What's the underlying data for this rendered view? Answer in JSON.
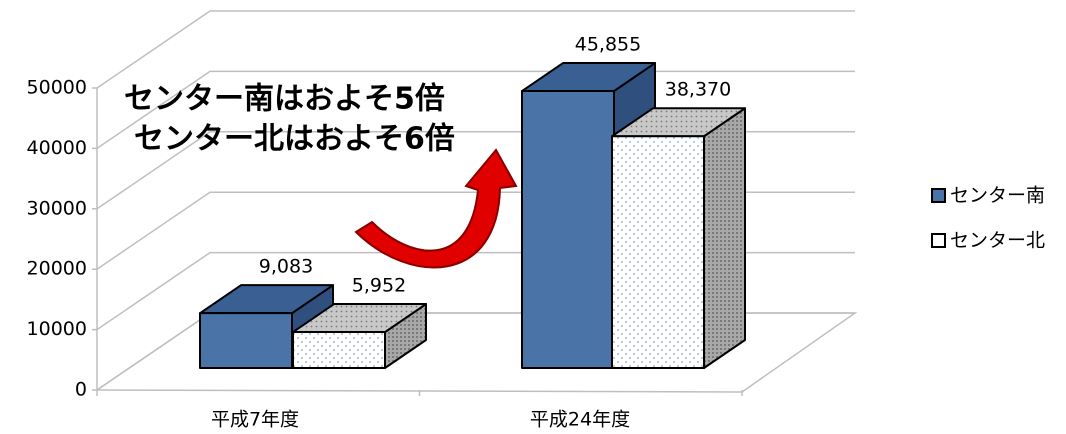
{
  "chart_data": {
    "type": "bar3d",
    "categories": [
      "平成7年度",
      "平成24年度"
    ],
    "series": [
      {
        "name": "センター南",
        "color": "#4a73a8",
        "values": [
          9083,
          45855
        ],
        "value_labels": [
          "9,083",
          "45,855"
        ]
      },
      {
        "name": "センター北",
        "color": "#ffffff",
        "values": [
          5952,
          38370
        ],
        "value_labels": [
          "5,952",
          "38,370"
        ]
      }
    ],
    "ylim": [
      0,
      50000
    ],
    "yticks": [
      0,
      10000,
      20000,
      30000,
      40000,
      50000
    ],
    "grid": true,
    "legend": "right",
    "annotations": [
      "センター南はおよそ5倍",
      "センター北はおよそ6倍"
    ]
  }
}
